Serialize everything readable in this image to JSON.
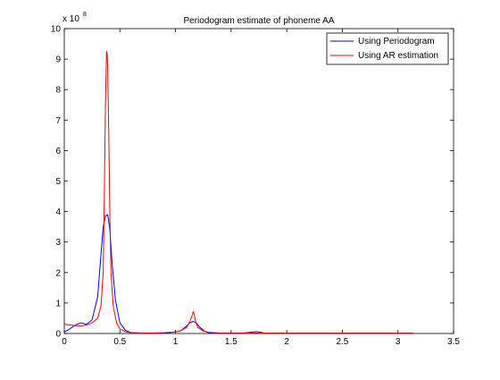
{
  "chart_data": {
    "type": "line",
    "title": "Periodogram estimate of phoneme AA",
    "xlabel": "",
    "ylabel": "",
    "xlim": [
      0,
      3.5
    ],
    "ylim": [
      0,
      10
    ],
    "y_exponent_label": "x 10",
    "y_exponent_power": "8",
    "xticks": [
      "0",
      "0.5",
      "1",
      "1.5",
      "2",
      "2.5",
      "3",
      "3.5"
    ],
    "yticks": [
      "0",
      "1",
      "2",
      "3",
      "4",
      "5",
      "6",
      "7",
      "8",
      "9",
      "10"
    ],
    "legend_position": "top-right",
    "grid": false,
    "series": [
      {
        "name": "Using Periodogram",
        "color": "#0000ff",
        "x": [
          0,
          0.05,
          0.1,
          0.15,
          0.2,
          0.25,
          0.3,
          0.33,
          0.35,
          0.37,
          0.39,
          0.41,
          0.43,
          0.46,
          0.5,
          0.55,
          0.6,
          0.7,
          0.8,
          0.9,
          1.0,
          1.05,
          1.1,
          1.13,
          1.16,
          1.19,
          1.22,
          1.26,
          1.3,
          1.4,
          1.6,
          1.7,
          1.72,
          1.76,
          1.8,
          2.0,
          2.5,
          3.0,
          3.14
        ],
        "y": [
          0.05,
          0.15,
          0.28,
          0.35,
          0.3,
          0.45,
          1.2,
          2.6,
          3.5,
          3.85,
          3.9,
          3.4,
          2.3,
          1.1,
          0.35,
          0.1,
          0.03,
          0.01,
          0.01,
          0.02,
          0.05,
          0.1,
          0.25,
          0.35,
          0.4,
          0.33,
          0.2,
          0.08,
          0.02,
          0.01,
          0.01,
          0.05,
          0.06,
          0.05,
          0.01,
          0.01,
          0.01,
          0.01,
          0.01
        ]
      },
      {
        "name": "Using AR estimation",
        "color": "#ff0000",
        "x": [
          0,
          0.05,
          0.1,
          0.15,
          0.2,
          0.25,
          0.3,
          0.33,
          0.35,
          0.36,
          0.37,
          0.38,
          0.385,
          0.39,
          0.4,
          0.41,
          0.42,
          0.44,
          0.47,
          0.5,
          0.55,
          0.6,
          0.7,
          0.8,
          0.9,
          1.0,
          1.05,
          1.1,
          1.13,
          1.15,
          1.16,
          1.17,
          1.18,
          1.2,
          1.25,
          1.3,
          1.4,
          1.5,
          2.0,
          2.5,
          3.0,
          3.14
        ],
        "y": [
          0.3,
          0.28,
          0.26,
          0.25,
          0.28,
          0.35,
          0.5,
          0.9,
          2.0,
          4.5,
          7.5,
          9.25,
          9.2,
          8.8,
          6.5,
          3.8,
          2.0,
          0.9,
          0.35,
          0.15,
          0.06,
          0.03,
          0.02,
          0.02,
          0.03,
          0.05,
          0.1,
          0.2,
          0.4,
          0.6,
          0.72,
          0.6,
          0.4,
          0.2,
          0.08,
          0.04,
          0.02,
          0.02,
          0.01,
          0.01,
          0.01,
          0.01
        ]
      }
    ]
  }
}
